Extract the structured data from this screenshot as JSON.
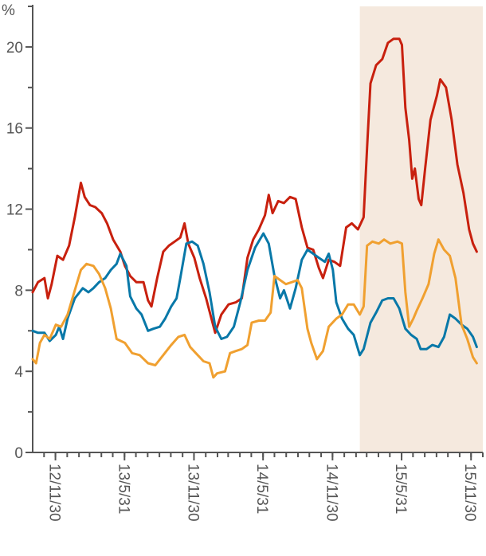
{
  "chart_data": {
    "type": "line",
    "title": "",
    "xlabel": "",
    "ylabel": "%",
    "ylim": [
      0,
      22
    ],
    "yticks": [
      0,
      4,
      8,
      12,
      16,
      20
    ],
    "x_ticks": [
      "12/11/30",
      "13/5/31",
      "13/11/30",
      "14/5/31",
      "14/11/30",
      "15/5/31",
      "15/11/30"
    ],
    "x_range": [
      "2012-10-01",
      "2015-12-31"
    ],
    "grid": false,
    "shaded_period": {
      "start": "2015-02-10",
      "end": "2015-12-31",
      "color": "#f5e9de"
    },
    "series": [
      {
        "color": "#c8200e",
        "points": [
          [
            "2012-10-01",
            7.9
          ],
          [
            "2012-10-15",
            8.4
          ],
          [
            "2012-11-01",
            8.6
          ],
          [
            "2012-11-10",
            7.6
          ],
          [
            "2012-11-20",
            8.3
          ],
          [
            "2012-12-05",
            9.7
          ],
          [
            "2012-12-20",
            9.5
          ],
          [
            "2013-01-05",
            10.2
          ],
          [
            "2013-01-20",
            11.6
          ],
          [
            "2013-02-05",
            13.3
          ],
          [
            "2013-02-15",
            12.6
          ],
          [
            "2013-03-01",
            12.2
          ],
          [
            "2013-03-15",
            12.1
          ],
          [
            "2013-04-01",
            11.8
          ],
          [
            "2013-04-15",
            11.3
          ],
          [
            "2013-05-01",
            10.5
          ],
          [
            "2013-05-20",
            9.9
          ],
          [
            "2013-06-01",
            9.2
          ],
          [
            "2013-06-15",
            8.7
          ],
          [
            "2013-07-01",
            8.4
          ],
          [
            "2013-07-20",
            8.4
          ],
          [
            "2013-08-01",
            7.5
          ],
          [
            "2013-08-10",
            7.2
          ],
          [
            "2013-08-25",
            8.6
          ],
          [
            "2013-09-10",
            9.9
          ],
          [
            "2013-09-25",
            10.2
          ],
          [
            "2013-10-10",
            10.4
          ],
          [
            "2013-10-25",
            10.6
          ],
          [
            "2013-11-05",
            11.3
          ],
          [
            "2013-11-15",
            10.3
          ],
          [
            "2013-12-01",
            9.6
          ],
          [
            "2013-12-15",
            8.6
          ],
          [
            "2014-01-01",
            7.6
          ],
          [
            "2014-01-15",
            6.6
          ],
          [
            "2014-01-25",
            5.9
          ],
          [
            "2014-02-10",
            6.8
          ],
          [
            "2014-03-01",
            7.3
          ],
          [
            "2014-03-20",
            7.4
          ],
          [
            "2014-04-05",
            7.6
          ],
          [
            "2014-04-20",
            9.6
          ],
          [
            "2014-05-05",
            10.5
          ],
          [
            "2014-05-20",
            11.0
          ],
          [
            "2014-06-05",
            11.7
          ],
          [
            "2014-06-15",
            12.7
          ],
          [
            "2014-06-25",
            11.8
          ],
          [
            "2014-07-10",
            12.4
          ],
          [
            "2014-07-25",
            12.3
          ],
          [
            "2014-08-10",
            12.6
          ],
          [
            "2014-08-25",
            12.5
          ],
          [
            "2014-09-10",
            11.1
          ],
          [
            "2014-09-25",
            10.1
          ],
          [
            "2014-10-10",
            10.0
          ],
          [
            "2014-10-25",
            9.1
          ],
          [
            "2014-11-05",
            8.6
          ],
          [
            "2014-11-20",
            9.5
          ],
          [
            "2014-12-05",
            9.4
          ],
          [
            "2014-12-20",
            9.2
          ],
          [
            "2015-01-05",
            11.1
          ],
          [
            "2015-01-20",
            11.3
          ],
          [
            "2015-02-05",
            11.0
          ],
          [
            "2015-02-20",
            11.6
          ],
          [
            "2015-03-01",
            15.0
          ],
          [
            "2015-03-10",
            18.2
          ],
          [
            "2015-03-25",
            19.1
          ],
          [
            "2015-04-10",
            19.4
          ],
          [
            "2015-04-25",
            20.2
          ],
          [
            "2015-05-10",
            20.4
          ],
          [
            "2015-05-25",
            20.4
          ],
          [
            "2015-06-01",
            20.1
          ],
          [
            "2015-06-10",
            17.0
          ],
          [
            "2015-06-20",
            15.4
          ],
          [
            "2015-06-28",
            13.5
          ],
          [
            "2015-07-05",
            14.0
          ],
          [
            "2015-07-15",
            12.5
          ],
          [
            "2015-07-22",
            12.2
          ],
          [
            "2015-08-01",
            14.0
          ],
          [
            "2015-08-15",
            16.4
          ],
          [
            "2015-09-01",
            17.6
          ],
          [
            "2015-09-10",
            18.4
          ],
          [
            "2015-09-25",
            18.0
          ],
          [
            "2015-10-10",
            16.4
          ],
          [
            "2015-10-25",
            14.2
          ],
          [
            "2015-11-10",
            12.8
          ],
          [
            "2015-11-25",
            11.0
          ],
          [
            "2015-12-05",
            10.3
          ],
          [
            "2015-12-15",
            9.9
          ]
        ]
      },
      {
        "color": "#0878a8",
        "points": [
          [
            "2012-10-01",
            6.0
          ],
          [
            "2012-10-15",
            5.9
          ],
          [
            "2012-11-01",
            5.9
          ],
          [
            "2012-11-15",
            5.5
          ],
          [
            "2012-12-01",
            5.8
          ],
          [
            "2012-12-10",
            6.2
          ],
          [
            "2012-12-20",
            5.6
          ],
          [
            "2013-01-01",
            6.6
          ],
          [
            "2013-01-20",
            7.6
          ],
          [
            "2013-02-10",
            8.1
          ],
          [
            "2013-02-25",
            7.9
          ],
          [
            "2013-03-10",
            8.1
          ],
          [
            "2013-03-25",
            8.4
          ],
          [
            "2013-04-10",
            8.6
          ],
          [
            "2013-04-25",
            9.0
          ],
          [
            "2013-05-10",
            9.3
          ],
          [
            "2013-05-20",
            9.8
          ],
          [
            "2013-06-05",
            9.2
          ],
          [
            "2013-06-15",
            7.7
          ],
          [
            "2013-07-01",
            7.1
          ],
          [
            "2013-07-15",
            6.8
          ],
          [
            "2013-08-01",
            6.0
          ],
          [
            "2013-08-15",
            6.1
          ],
          [
            "2013-09-01",
            6.2
          ],
          [
            "2013-09-15",
            6.6
          ],
          [
            "2013-10-01",
            7.2
          ],
          [
            "2013-10-15",
            7.6
          ],
          [
            "2013-10-25",
            8.6
          ],
          [
            "2013-11-10",
            10.3
          ],
          [
            "2013-11-25",
            10.4
          ],
          [
            "2013-12-10",
            10.2
          ],
          [
            "2013-12-25",
            9.3
          ],
          [
            "2014-01-10",
            7.9
          ],
          [
            "2014-01-25",
            6.2
          ],
          [
            "2014-02-10",
            5.6
          ],
          [
            "2014-02-25",
            5.7
          ],
          [
            "2014-03-15",
            6.2
          ],
          [
            "2014-04-01",
            7.4
          ],
          [
            "2014-04-20",
            9.0
          ],
          [
            "2014-05-10",
            10.1
          ],
          [
            "2014-06-01",
            10.8
          ],
          [
            "2014-06-15",
            10.3
          ],
          [
            "2014-06-30",
            8.7
          ],
          [
            "2014-07-15",
            7.6
          ],
          [
            "2014-07-25",
            8.0
          ],
          [
            "2014-08-10",
            7.1
          ],
          [
            "2014-08-25",
            8.1
          ],
          [
            "2014-09-10",
            9.5
          ],
          [
            "2014-09-25",
            10.0
          ],
          [
            "2014-10-10",
            9.8
          ],
          [
            "2014-10-25",
            9.6
          ],
          [
            "2014-11-10",
            9.4
          ],
          [
            "2014-11-20",
            9.8
          ],
          [
            "2014-12-01",
            9.0
          ],
          [
            "2014-12-10",
            7.4
          ],
          [
            "2014-12-25",
            6.6
          ],
          [
            "2015-01-10",
            6.1
          ],
          [
            "2015-01-25",
            5.8
          ],
          [
            "2015-02-10",
            4.8
          ],
          [
            "2015-02-20",
            5.1
          ],
          [
            "2015-03-10",
            6.4
          ],
          [
            "2015-03-25",
            6.9
          ],
          [
            "2015-04-10",
            7.5
          ],
          [
            "2015-04-25",
            7.6
          ],
          [
            "2015-05-10",
            7.6
          ],
          [
            "2015-05-25",
            7.1
          ],
          [
            "2015-06-10",
            6.1
          ],
          [
            "2015-06-25",
            5.8
          ],
          [
            "2015-07-10",
            5.6
          ],
          [
            "2015-07-20",
            5.1
          ],
          [
            "2015-08-05",
            5.1
          ],
          [
            "2015-08-20",
            5.3
          ],
          [
            "2015-09-05",
            5.2
          ],
          [
            "2015-09-20",
            5.7
          ],
          [
            "2015-10-05",
            6.8
          ],
          [
            "2015-10-20",
            6.6
          ],
          [
            "2015-11-05",
            6.3
          ],
          [
            "2015-11-20",
            6.1
          ],
          [
            "2015-12-05",
            5.7
          ],
          [
            "2015-12-15",
            5.2
          ]
        ]
      },
      {
        "color": "#f0a030",
        "points": [
          [
            "2012-10-01",
            4.6
          ],
          [
            "2012-10-10",
            4.4
          ],
          [
            "2012-10-20",
            5.4
          ],
          [
            "2012-11-01",
            5.8
          ],
          [
            "2012-11-15",
            5.6
          ],
          [
            "2012-12-01",
            6.3
          ],
          [
            "2012-12-15",
            6.2
          ],
          [
            "2013-01-01",
            6.8
          ],
          [
            "2013-01-20",
            8.0
          ],
          [
            "2013-02-05",
            9.0
          ],
          [
            "2013-02-20",
            9.3
          ],
          [
            "2013-03-10",
            9.2
          ],
          [
            "2013-03-25",
            8.8
          ],
          [
            "2013-04-10",
            8.1
          ],
          [
            "2013-04-25",
            7.1
          ],
          [
            "2013-05-10",
            5.6
          ],
          [
            "2013-06-01",
            5.4
          ],
          [
            "2013-06-20",
            4.9
          ],
          [
            "2013-07-10",
            4.8
          ],
          [
            "2013-08-01",
            4.4
          ],
          [
            "2013-08-20",
            4.3
          ],
          [
            "2013-09-10",
            4.8
          ],
          [
            "2013-10-01",
            5.3
          ],
          [
            "2013-10-20",
            5.7
          ],
          [
            "2013-11-05",
            5.8
          ],
          [
            "2013-11-20",
            5.2
          ],
          [
            "2013-12-05",
            4.9
          ],
          [
            "2013-12-25",
            4.5
          ],
          [
            "2014-01-10",
            4.4
          ],
          [
            "2014-01-20",
            3.7
          ],
          [
            "2014-01-30",
            3.9
          ],
          [
            "2014-02-20",
            4.0
          ],
          [
            "2014-03-05",
            4.9
          ],
          [
            "2014-03-20",
            5.0
          ],
          [
            "2014-04-05",
            5.1
          ],
          [
            "2014-04-20",
            5.3
          ],
          [
            "2014-05-01",
            6.4
          ],
          [
            "2014-05-20",
            6.5
          ],
          [
            "2014-06-05",
            6.5
          ],
          [
            "2014-06-20",
            6.9
          ],
          [
            "2014-06-30",
            8.7
          ],
          [
            "2014-07-15",
            8.5
          ],
          [
            "2014-07-30",
            8.3
          ],
          [
            "2014-08-15",
            8.4
          ],
          [
            "2014-08-30",
            8.5
          ],
          [
            "2014-09-10",
            8.1
          ],
          [
            "2014-09-25",
            6.1
          ],
          [
            "2014-10-05",
            5.4
          ],
          [
            "2014-10-20",
            4.6
          ],
          [
            "2014-11-05",
            5.0
          ],
          [
            "2014-11-20",
            6.2
          ],
          [
            "2014-12-10",
            6.6
          ],
          [
            "2014-12-25",
            6.8
          ],
          [
            "2015-01-10",
            7.3
          ],
          [
            "2015-01-25",
            7.3
          ],
          [
            "2015-02-10",
            6.8
          ],
          [
            "2015-02-20",
            7.2
          ],
          [
            "2015-03-01",
            10.2
          ],
          [
            "2015-03-15",
            10.4
          ],
          [
            "2015-04-01",
            10.3
          ],
          [
            "2015-04-15",
            10.5
          ],
          [
            "2015-05-01",
            10.3
          ],
          [
            "2015-05-20",
            10.4
          ],
          [
            "2015-06-01",
            10.3
          ],
          [
            "2015-06-10",
            7.9
          ],
          [
            "2015-06-20",
            6.2
          ],
          [
            "2015-07-01",
            6.6
          ],
          [
            "2015-07-10",
            7.0
          ],
          [
            "2015-07-25",
            7.6
          ],
          [
            "2015-08-10",
            8.3
          ],
          [
            "2015-08-25",
            9.8
          ],
          [
            "2015-09-05",
            10.5
          ],
          [
            "2015-09-20",
            10.0
          ],
          [
            "2015-10-05",
            9.7
          ],
          [
            "2015-10-20",
            8.6
          ],
          [
            "2015-11-05",
            6.3
          ],
          [
            "2015-11-20",
            5.6
          ],
          [
            "2015-12-05",
            4.7
          ],
          [
            "2015-12-15",
            4.4
          ]
        ]
      }
    ]
  }
}
